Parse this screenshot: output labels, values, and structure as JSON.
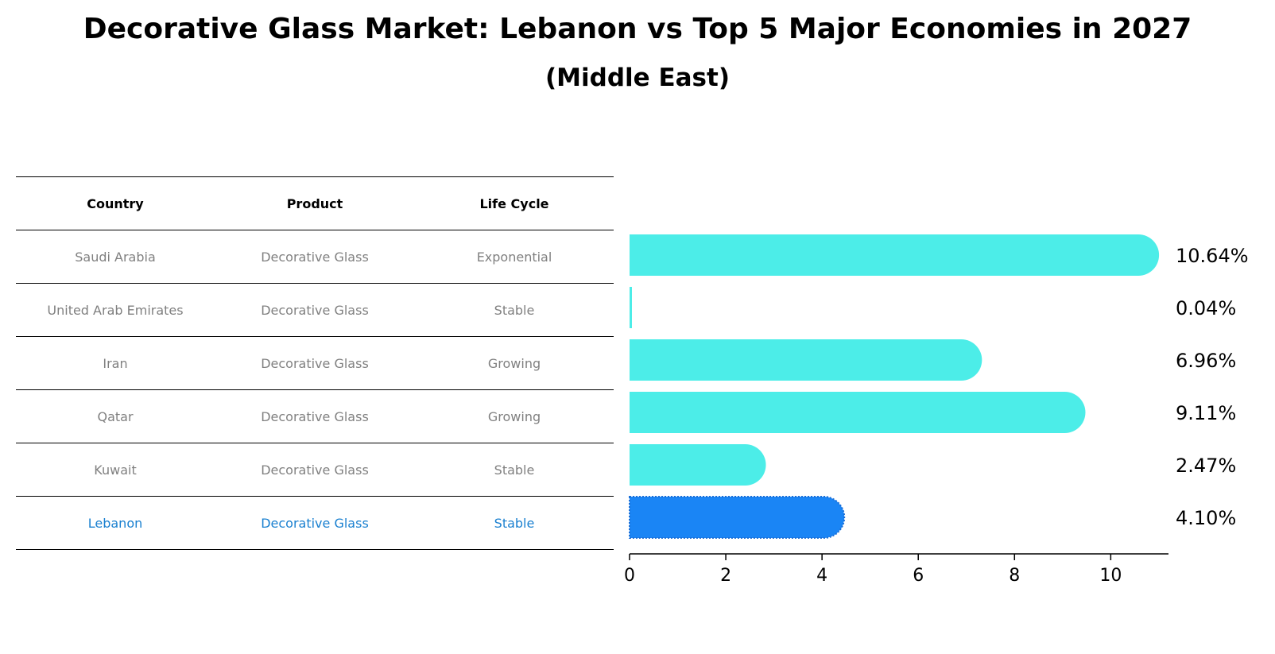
{
  "header": {
    "title": "Decorative Glass Market: Lebanon vs Top 5 Major Economies in 2027",
    "subtitle": "(Middle East)"
  },
  "table": {
    "columns": [
      "Country",
      "Product",
      "Life Cycle"
    ],
    "rows": [
      [
        "Saudi Arabia",
        "Decorative Glass",
        "Exponential"
      ],
      [
        "United Arab Emirates",
        "Decorative Glass",
        "Stable"
      ],
      [
        "Iran",
        "Decorative Glass",
        "Growing"
      ],
      [
        "Qatar",
        "Decorative Glass",
        "Growing"
      ],
      [
        "Kuwait",
        "Decorative Glass",
        "Stable"
      ],
      [
        "Lebanon",
        "Decorative Glass",
        "Stable"
      ]
    ],
    "highlight_row": 5
  },
  "chart_data": {
    "type": "bar",
    "orientation": "horizontal",
    "categories": [
      "Saudi Arabia",
      "United Arab Emirates",
      "Iran",
      "Qatar",
      "Kuwait",
      "Lebanon"
    ],
    "values": [
      10.64,
      0.04,
      6.96,
      9.11,
      2.47,
      4.1
    ],
    "value_labels": [
      "10.64%",
      "0.04%",
      "6.96%",
      "9.11%",
      "2.47%",
      "4.10%"
    ],
    "xlim": [
      0,
      11.2
    ],
    "xticks": [
      0,
      2,
      4,
      6,
      8,
      10
    ],
    "colors": {
      "default": "#4cede8",
      "highlight": "#1a85f5"
    },
    "highlight_index": 5,
    "grid": false
  }
}
